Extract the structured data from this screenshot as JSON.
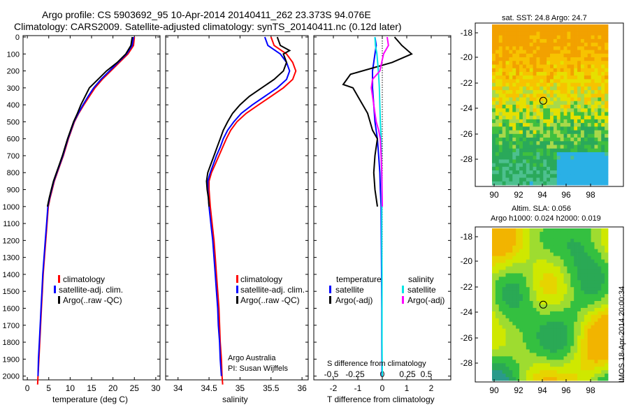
{
  "title": {
    "line1": "Argo profile: CS 5903692_95 10-Apr-2014 20140411_262 23.373S 94.076E",
    "line2": "Climatology: CARS2009. Satellite-adjusted climatology: synTS_20140411.nc (0.12d later)"
  },
  "colors": {
    "climatology": "#ff0000",
    "satellite": "#0000ff",
    "argo": "#000000",
    "satellite_s": "#00e5e5",
    "argo_s": "#ff00ff"
  },
  "y_ticks": [
    "0",
    "100",
    "200",
    "300",
    "400",
    "500",
    "600",
    "700",
    "800",
    "900",
    "1000",
    "1100",
    "1200",
    "1300",
    "1400",
    "1500",
    "1600",
    "1700",
    "1800",
    "1900",
    "2000"
  ],
  "panels": {
    "temperature": {
      "xlabel": "temperature (deg C)",
      "xticks": [
        "0",
        "5",
        "10",
        "15",
        "20",
        "25",
        "30"
      ],
      "legend": [
        "climatology",
        "satellite-adj. clim.",
        "Argo(..raw -QC)"
      ]
    },
    "salinity": {
      "xlabel": "salinity",
      "xticks": [
        "34",
        "34.5",
        "35",
        "35.5",
        "36"
      ],
      "legend": [
        "climatology",
        "satellite-adj. clim.",
        "Argo(..raw -QC)"
      ],
      "note1": "Argo Australia",
      "note2": "PI: Susan Wijffels"
    },
    "difference": {
      "xlabel": "T difference from climatology",
      "xticks_t": [
        "-2",
        "-1",
        "0",
        "1",
        "2"
      ],
      "xlabel_s": "S difference from climatology",
      "xticks_s": [
        "-0.5",
        "-0.25",
        "0",
        "0.25",
        "0.5"
      ],
      "legend_t_title": "temperature",
      "legend_s_title": "salinity",
      "legend_t": [
        "satellite",
        "Argo(-adj)"
      ],
      "legend_s": [
        "satellite",
        "Argo(-adj)"
      ]
    }
  },
  "maps": {
    "sst_title": "sat. SST: 24.8 Argo: 24.7",
    "sla_title1": "Altim. SLA: 0.056",
    "sla_title2": "Argo h1000: 0.024 h2000: 0.019",
    "lat_ticks": [
      "-18",
      "-20",
      "-22",
      "-24",
      "-26",
      "-28"
    ],
    "lon_ticks": [
      "90",
      "92",
      "94",
      "96",
      "98"
    ],
    "side_label": "IMOS 18-Apr-2014 20:00:34",
    "float_lat": -23.373,
    "float_lon": 94.076
  },
  "chart_data": [
    {
      "type": "line",
      "title": "",
      "xlabel": "temperature (deg C)",
      "ylabel": "",
      "xlim": [
        -1,
        31
      ],
      "ylim": [
        2080,
        0
      ],
      "series": [
        {
          "name": "climatology",
          "points": [
            [
              25,
              0
            ],
            [
              24.8,
              50
            ],
            [
              23.5,
              100
            ],
            [
              21.5,
              150
            ],
            [
              19.5,
              200
            ],
            [
              17.5,
              250
            ],
            [
              15.8,
              300
            ],
            [
              14.5,
              350
            ],
            [
              13.2,
              400
            ],
            [
              12,
              450
            ],
            [
              11,
              500
            ],
            [
              10.3,
              550
            ],
            [
              9.6,
              600
            ],
            [
              9,
              650
            ],
            [
              8.4,
              700
            ],
            [
              7.7,
              750
            ],
            [
              7,
              800
            ],
            [
              6.3,
              850
            ],
            [
              5.8,
              900
            ],
            [
              5.3,
              950
            ],
            [
              4.9,
              1000
            ],
            [
              4.6,
              1100
            ],
            [
              4.3,
              1200
            ],
            [
              4.0,
              1300
            ],
            [
              3.7,
              1400
            ],
            [
              3.5,
              1500
            ],
            [
              3.3,
              1600
            ],
            [
              3.1,
              1700
            ],
            [
              2.9,
              1800
            ],
            [
              2.7,
              1900
            ],
            [
              2.5,
              2000
            ],
            [
              2.4,
              2050
            ]
          ]
        },
        {
          "name": "satellite-adj. clim.",
          "points": [
            [
              24.8,
              0
            ],
            [
              24.5,
              50
            ],
            [
              23.2,
              100
            ],
            [
              21.2,
              150
            ],
            [
              19.2,
              200
            ],
            [
              17.2,
              250
            ],
            [
              15.5,
              300
            ],
            [
              14.2,
              350
            ],
            [
              13,
              400
            ],
            [
              11.9,
              450
            ],
            [
              10.9,
              500
            ],
            [
              10.2,
              550
            ],
            [
              9.5,
              600
            ],
            [
              8.9,
              650
            ],
            [
              8.3,
              700
            ],
            [
              7.6,
              750
            ],
            [
              6.9,
              800
            ],
            [
              6.2,
              850
            ],
            [
              5.7,
              900
            ],
            [
              5.2,
              950
            ],
            [
              4.8,
              1000
            ],
            [
              4.5,
              1100
            ],
            [
              4.2,
              1200
            ],
            [
              3.9,
              1300
            ],
            [
              3.6,
              1400
            ],
            [
              3.4,
              1500
            ],
            [
              3.2,
              1600
            ],
            [
              3.0,
              1700
            ],
            [
              2.8,
              1800
            ],
            [
              2.6,
              1900
            ],
            [
              2.5,
              2000
            ]
          ]
        },
        {
          "name": "Argo(..raw -QC)",
          "points": [
            [
              24.5,
              0
            ],
            [
              24.2,
              50
            ],
            [
              23,
              100
            ],
            [
              21,
              150
            ],
            [
              18.5,
              200
            ],
            [
              16.5,
              250
            ],
            [
              14.5,
              300
            ],
            [
              13.5,
              350
            ],
            [
              12.5,
              400
            ],
            [
              11.7,
              450
            ],
            [
              10.8,
              500
            ],
            [
              10.1,
              550
            ],
            [
              9.4,
              600
            ],
            [
              8.8,
              650
            ],
            [
              8.2,
              700
            ],
            [
              7.5,
              750
            ],
            [
              6.8,
              800
            ],
            [
              6.1,
              850
            ],
            [
              5.6,
              900
            ],
            [
              5.1,
              950
            ],
            [
              4.7,
              1000
            ]
          ]
        }
      ]
    },
    {
      "type": "line",
      "title": "",
      "xlabel": "salinity",
      "ylabel": "",
      "xlim": [
        33.8,
        36.1
      ],
      "ylim": [
        2080,
        0
      ],
      "series": [
        {
          "name": "climatology",
          "points": [
            [
              35.5,
              0
            ],
            [
              35.55,
              50
            ],
            [
              35.75,
              100
            ],
            [
              35.85,
              150
            ],
            [
              35.9,
              200
            ],
            [
              35.85,
              250
            ],
            [
              35.7,
              300
            ],
            [
              35.5,
              350
            ],
            [
              35.3,
              400
            ],
            [
              35.1,
              450
            ],
            [
              34.95,
              500
            ],
            [
              34.85,
              550
            ],
            [
              34.78,
              600
            ],
            [
              34.72,
              650
            ],
            [
              34.66,
              700
            ],
            [
              34.6,
              750
            ],
            [
              34.54,
              800
            ],
            [
              34.5,
              850
            ],
            [
              34.5,
              900
            ],
            [
              34.52,
              1000
            ],
            [
              34.55,
              1100
            ],
            [
              34.58,
              1200
            ],
            [
              34.6,
              1300
            ],
            [
              34.62,
              1400
            ],
            [
              34.64,
              1500
            ],
            [
              34.66,
              1600
            ],
            [
              34.67,
              1700
            ],
            [
              34.68,
              1800
            ],
            [
              34.7,
              1900
            ],
            [
              34.71,
              2000
            ],
            [
              34.72,
              2050
            ]
          ]
        },
        {
          "name": "satellite-adj. clim.",
          "points": [
            [
              35.4,
              0
            ],
            [
              35.45,
              50
            ],
            [
              35.65,
              100
            ],
            [
              35.75,
              150
            ],
            [
              35.8,
              200
            ],
            [
              35.75,
              250
            ],
            [
              35.6,
              300
            ],
            [
              35.4,
              350
            ],
            [
              35.2,
              400
            ],
            [
              35.02,
              450
            ],
            [
              34.9,
              500
            ],
            [
              34.8,
              550
            ],
            [
              34.73,
              600
            ],
            [
              34.68,
              650
            ],
            [
              34.62,
              700
            ],
            [
              34.57,
              750
            ],
            [
              34.52,
              800
            ],
            [
              34.48,
              850
            ],
            [
              34.48,
              900
            ],
            [
              34.5,
              1000
            ],
            [
              34.53,
              1100
            ],
            [
              34.56,
              1200
            ],
            [
              34.58,
              1300
            ],
            [
              34.6,
              1400
            ],
            [
              34.62,
              1500
            ],
            [
              34.64,
              1600
            ],
            [
              34.65,
              1700
            ],
            [
              34.67,
              1800
            ],
            [
              34.68,
              1900
            ],
            [
              34.7,
              2000
            ]
          ]
        },
        {
          "name": "Argo(..raw -QC)",
          "points": [
            [
              35.6,
              0
            ],
            [
              35.65,
              50
            ],
            [
              35.8,
              80
            ],
            [
              35.7,
              100
            ],
            [
              35.75,
              150
            ],
            [
              35.7,
              200
            ],
            [
              35.55,
              250
            ],
            [
              35.35,
              300
            ],
            [
              35.15,
              350
            ],
            [
              35.0,
              400
            ],
            [
              34.88,
              450
            ],
            [
              34.8,
              500
            ],
            [
              34.73,
              550
            ],
            [
              34.68,
              600
            ],
            [
              34.63,
              650
            ],
            [
              34.58,
              700
            ],
            [
              34.53,
              750
            ],
            [
              34.48,
              800
            ],
            [
              34.46,
              850
            ],
            [
              34.47,
              900
            ],
            [
              34.49,
              950
            ],
            [
              34.5,
              1000
            ]
          ]
        }
      ]
    },
    {
      "type": "line",
      "title": "",
      "xlabel": "T difference from climatology",
      "ylabel": "",
      "xlim": [
        -2.8,
        2.8
      ],
      "ylim": [
        2080,
        0
      ],
      "series": [
        {
          "name": "satellite",
          "points": [
            [
              -0.3,
              0
            ],
            [
              -0.25,
              50
            ],
            [
              -0.3,
              100
            ],
            [
              -0.4,
              200
            ],
            [
              -0.4,
              300
            ],
            [
              -0.35,
              400
            ],
            [
              -0.3,
              500
            ],
            [
              -0.2,
              600
            ],
            [
              -0.15,
              700
            ],
            [
              -0.1,
              800
            ],
            [
              -0.08,
              900
            ],
            [
              -0.05,
              1000
            ],
            [
              -0.04,
              1200
            ],
            [
              -0.03,
              1400
            ],
            [
              -0.02,
              1600
            ],
            [
              -0.02,
              1800
            ],
            [
              -0.01,
              2000
            ]
          ]
        },
        {
          "name": "Argo(-adj)",
          "points": [
            [
              0.5,
              0
            ],
            [
              0.8,
              50
            ],
            [
              1.2,
              100
            ],
            [
              0.4,
              150
            ],
            [
              -1.3,
              220
            ],
            [
              -1.6,
              280
            ],
            [
              -1.2,
              300
            ],
            [
              -1.0,
              350
            ],
            [
              -0.8,
              400
            ],
            [
              -0.6,
              450
            ],
            [
              -0.5,
              500
            ],
            [
              -0.4,
              550
            ],
            [
              -0.2,
              600
            ],
            [
              -0.3,
              700
            ],
            [
              -0.35,
              800
            ],
            [
              -0.3,
              900
            ],
            [
              -0.2,
              1000
            ]
          ]
        },
        {
          "name": "satellite (S)",
          "points": [
            [
              -0.3,
              0
            ],
            [
              -0.28,
              50
            ],
            [
              -0.22,
              100
            ],
            [
              -0.16,
              200
            ],
            [
              -0.12,
              300
            ],
            [
              -0.1,
              400
            ],
            [
              -0.08,
              500
            ],
            [
              -0.05,
              600
            ],
            [
              -0.04,
              700
            ],
            [
              -0.03,
              800
            ],
            [
              -0.02,
              1000
            ],
            [
              -0.02,
              1200
            ],
            [
              -0.01,
              1400
            ],
            [
              -0.01,
              1600
            ],
            [
              -0.01,
              1800
            ],
            [
              0.0,
              2000
            ]
          ]
        },
        {
          "name": "Argo(-adj) (S)",
          "points": [
            [
              0.2,
              0
            ],
            [
              0.25,
              50
            ],
            [
              0.05,
              100
            ],
            [
              -0.1,
              200
            ],
            [
              -0.4,
              250
            ],
            [
              -0.45,
              300
            ],
            [
              -0.35,
              400
            ],
            [
              -0.3,
              450
            ],
            [
              -0.25,
              500
            ],
            [
              -0.15,
              550
            ],
            [
              -0.08,
              600
            ],
            [
              -0.05,
              700
            ],
            [
              -0.02,
              800
            ],
            [
              -0.01,
              900
            ],
            [
              0.0,
              1000
            ]
          ]
        }
      ]
    }
  ]
}
